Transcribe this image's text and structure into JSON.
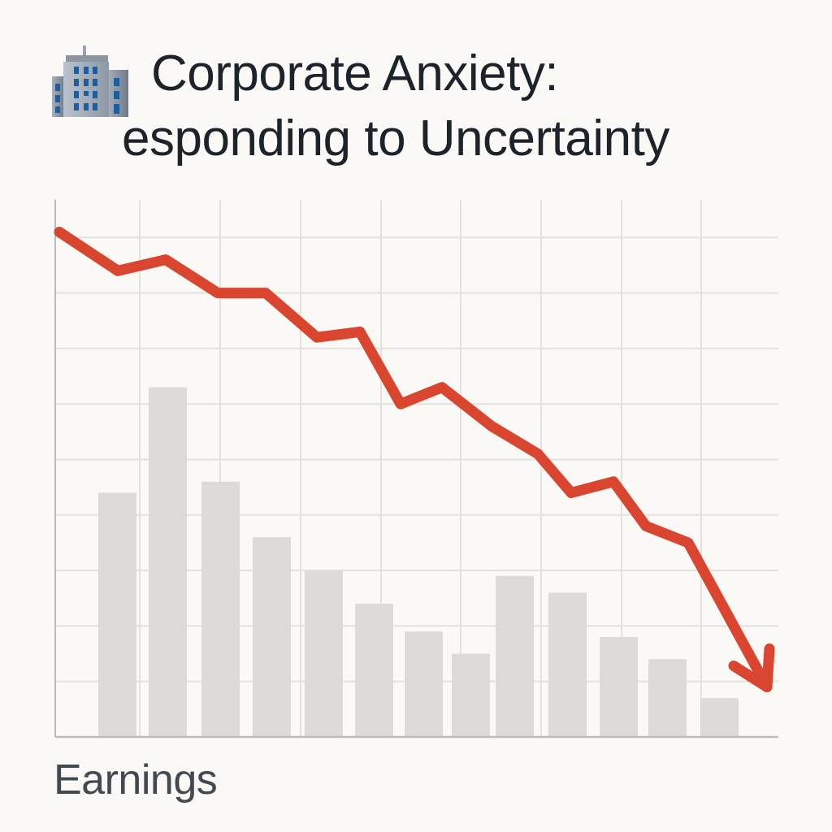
{
  "header": {
    "icon": "office-building-icon",
    "title_line_1": "Corporate Anxiety:",
    "title_line_2": "esponding to Uncertainty"
  },
  "footer": {
    "axis_label": "Earnings"
  },
  "colors": {
    "background": "#faf9f6",
    "title": "#1d232b",
    "line": "#d9452f",
    "bars": "#dcdbd8",
    "grid": "#e2e1de",
    "axis": "#bdbcb9",
    "axis_label": "#424a50"
  },
  "chart_data": {
    "type": "bar+line",
    "title": "Corporate Anxiety: esponding to Uncertainty",
    "xlabel": "Earnings",
    "ylabel": "",
    "tick_labels_shown": false,
    "grid": true,
    "ylim": [
      0,
      10
    ],
    "series": [
      {
        "name": "bars",
        "type": "bar",
        "values": [
          4.4,
          6.3,
          4.6,
          3.6,
          3.0,
          2.4,
          1.9,
          1.5,
          2.9,
          2.6,
          1.8,
          1.4,
          0.7
        ]
      },
      {
        "name": "trend",
        "type": "line",
        "style": "red line with arrowhead at end",
        "values": [
          9.1,
          8.4,
          8.6,
          8.0,
          8.0,
          7.2,
          7.3,
          6.0,
          6.3,
          5.6,
          5.1,
          4.4,
          4.6,
          3.8,
          3.5,
          0.9
        ]
      }
    ]
  }
}
